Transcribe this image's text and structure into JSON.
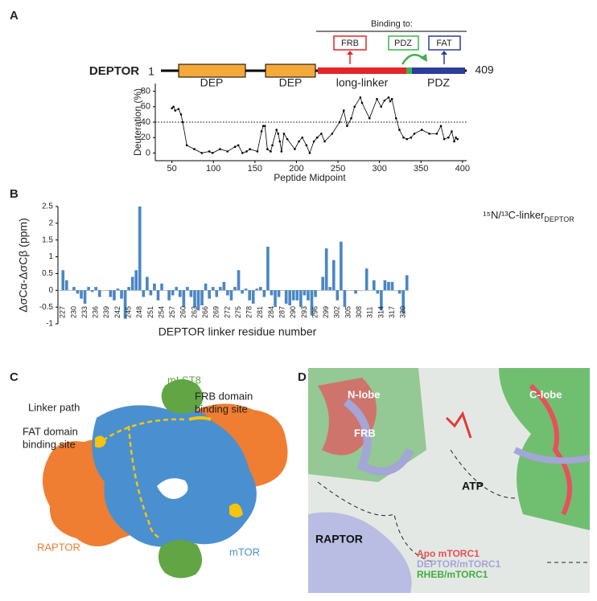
{
  "panel_a": {
    "label": "A",
    "protein": "DEPTOR",
    "start": 1,
    "end": 409,
    "domains": [
      "DEP",
      "DEP",
      "long-linker",
      "PDZ"
    ],
    "binding_header": "Binding to:",
    "binding_sites": [
      "FRB",
      "PDZ",
      "FAT"
    ],
    "chart": {
      "type": "line",
      "color": "#000000",
      "x": [
        50,
        52,
        54,
        58,
        61,
        63,
        68,
        77,
        86,
        95,
        99,
        108,
        117,
        126,
        130,
        135,
        140,
        144,
        153,
        158,
        160,
        162,
        165,
        169,
        171,
        176,
        178,
        180,
        182,
        185,
        189,
        198,
        203,
        207,
        212,
        216,
        221,
        225,
        230,
        234,
        243,
        252,
        257,
        261,
        266,
        270,
        277,
        279,
        288,
        297,
        302,
        306,
        311,
        313,
        315,
        320,
        324,
        329,
        333,
        338,
        342,
        351,
        360,
        369,
        374,
        378,
        383,
        387,
        390,
        392,
        394
      ],
      "values": [
        58,
        60,
        55,
        57,
        50,
        40,
        10,
        5,
        0,
        2,
        0,
        5,
        2,
        8,
        10,
        0,
        2,
        5,
        2,
        28,
        35,
        35,
        5,
        2,
        10,
        30,
        25,
        15,
        2,
        25,
        18,
        5,
        15,
        20,
        10,
        0,
        15,
        20,
        25,
        15,
        25,
        40,
        55,
        35,
        45,
        60,
        72,
        65,
        45,
        70,
        60,
        68,
        72,
        67,
        70,
        45,
        30,
        20,
        18,
        20,
        25,
        30,
        25,
        25,
        35,
        18,
        20,
        28,
        15,
        20,
        18
      ],
      "xlim": [
        30,
        405
      ],
      "xticks": [
        50,
        100,
        150,
        200,
        250,
        300,
        350,
        400
      ],
      "ylim": [
        -10,
        90
      ],
      "yticks": [
        0,
        20,
        40,
        60,
        80
      ],
      "reference_line": 40,
      "x_label": "Peptide Midpoint",
      "y_label": "Deuteration (%)"
    }
  },
  "panel_b": {
    "label": "B",
    "chart": {
      "type": "bar",
      "color": "#4a86c5",
      "title": "¹⁵N/¹³C-linker",
      "title_subscript": "DEPTOR",
      "x_label": "DEPTOR linker residue number",
      "y_label": "ΔσCα-ΔσCβ (ppm)",
      "categories": [
        "227",
        null,
        null,
        "230",
        null,
        null,
        "233",
        null,
        null,
        "236",
        null,
        null,
        "239",
        null,
        null,
        "242",
        null,
        null,
        "245",
        null,
        null,
        "248",
        null,
        null,
        "251",
        null,
        null,
        "254",
        null,
        null,
        "257",
        null,
        null,
        "260",
        null,
        null,
        "263",
        null,
        null,
        "266",
        null,
        null,
        "269",
        null,
        null,
        "272",
        null,
        null,
        "275",
        null,
        null,
        "278",
        null,
        null,
        "281",
        null,
        null,
        "284",
        null,
        null,
        "287",
        null,
        null,
        "290",
        null,
        null,
        "293",
        null,
        null,
        "296",
        null,
        null,
        "299",
        null,
        null,
        "302",
        null,
        null,
        "305",
        null,
        null,
        "308",
        null,
        null,
        "311",
        null,
        null,
        "314",
        null,
        null,
        "317",
        null,
        null,
        "320",
        null
      ],
      "values": [
        0.6,
        0.3,
        0,
        0.1,
        -0.1,
        -0.25,
        -0.4,
        0.1,
        -0.05,
        0.1,
        -0.2,
        0,
        0,
        -0.2,
        -0.3,
        0.05,
        -0.25,
        -0.85,
        0.1,
        0.4,
        0.6,
        2.5,
        -0.2,
        0.4,
        -0.15,
        0.2,
        -0.3,
        0.2,
        0,
        -0.3,
        -0.15,
        0.1,
        -0.2,
        -0.5,
        0.1,
        -0.2,
        -0.5,
        -0.6,
        -0.45,
        0.2,
        -0.25,
        0.1,
        -0.2,
        0.1,
        0.25,
        -0.15,
        -0.3,
        0.1,
        0.6,
        -0.1,
        0.05,
        -0.3,
        -0.4,
        0.05,
        0.1,
        -0.2,
        1.3,
        -0.15,
        -0.5,
        -0.2,
        0,
        -0.4,
        -0.45,
        -0.3,
        -0.3,
        -0.5,
        -0.15,
        -0.3,
        -0.75,
        -0.2,
        0,
        0.4,
        1.25,
        0.1,
        0.9,
        -0.3,
        1.45,
        -0.5,
        0,
        0,
        -0.1,
        0,
        0,
        0.65,
        0,
        0.3,
        -0.1,
        -0.6,
        0.3,
        0.25,
        0.25,
        0,
        -0.1,
        -0.7,
        0.45
      ],
      "ylim": [
        -1,
        2.5
      ],
      "yticks": [
        -1,
        -0.5,
        0,
        0.5,
        1,
        1.5,
        2,
        2.5
      ]
    }
  },
  "panel_c": {
    "label": "C",
    "mlst8": "mLST8",
    "linker": "Linker path",
    "frb": [
      "FRB domain",
      "binding site"
    ],
    "fat": [
      "FAT domain",
      "binding site"
    ],
    "raptor": "RAPTOR",
    "mtor": "mTOR"
  },
  "panel_d": {
    "label": "D",
    "n_lobe": "N-lobe",
    "c_lobe": "C-lobe",
    "frb": "FRB",
    "atp": "ATP",
    "raptor": "RAPTOR",
    "legend": [
      {
        "name": "Apo mTORC1",
        "color": "#e8505b"
      },
      {
        "name": "DEPTOR/mTORC1",
        "color": "#a3a6d6"
      },
      {
        "name": "RHEB/mTORC1",
        "color": "#3fae3f"
      }
    ]
  }
}
